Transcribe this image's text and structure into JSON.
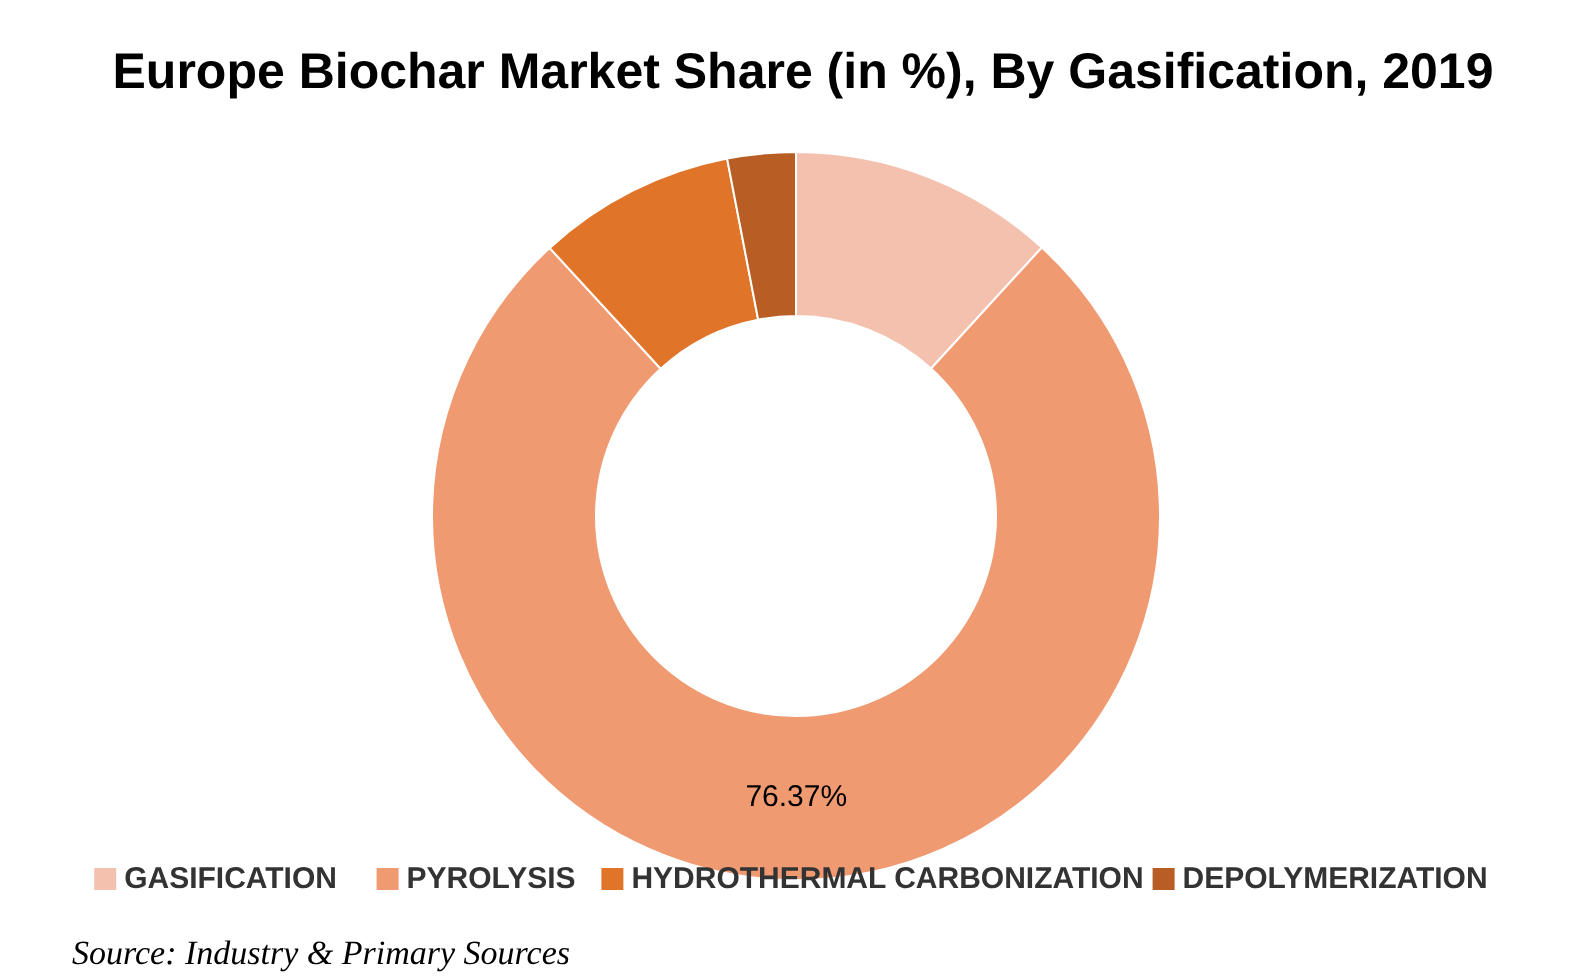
{
  "chart_data": {
    "type": "donut",
    "title": "Europe Biochar Market Share (in %), By Gasification, 2019",
    "categories": [
      "GASIFICATION",
      "PYROLYSIS",
      "HYDROTHERMAL CARBONIZATION",
      "DEPOLYMERIZATION"
    ],
    "values": [
      11.8,
      76.37,
      8.8,
      3.03
    ],
    "colors": [
      "#f4c1ae",
      "#f09a72",
      "#e07428",
      "#b85e24"
    ],
    "value_labels": [
      null,
      "76.37%",
      null,
      null
    ],
    "legend": "bottom",
    "annotations": [
      "Source: Industry & Primary Sources"
    ]
  }
}
